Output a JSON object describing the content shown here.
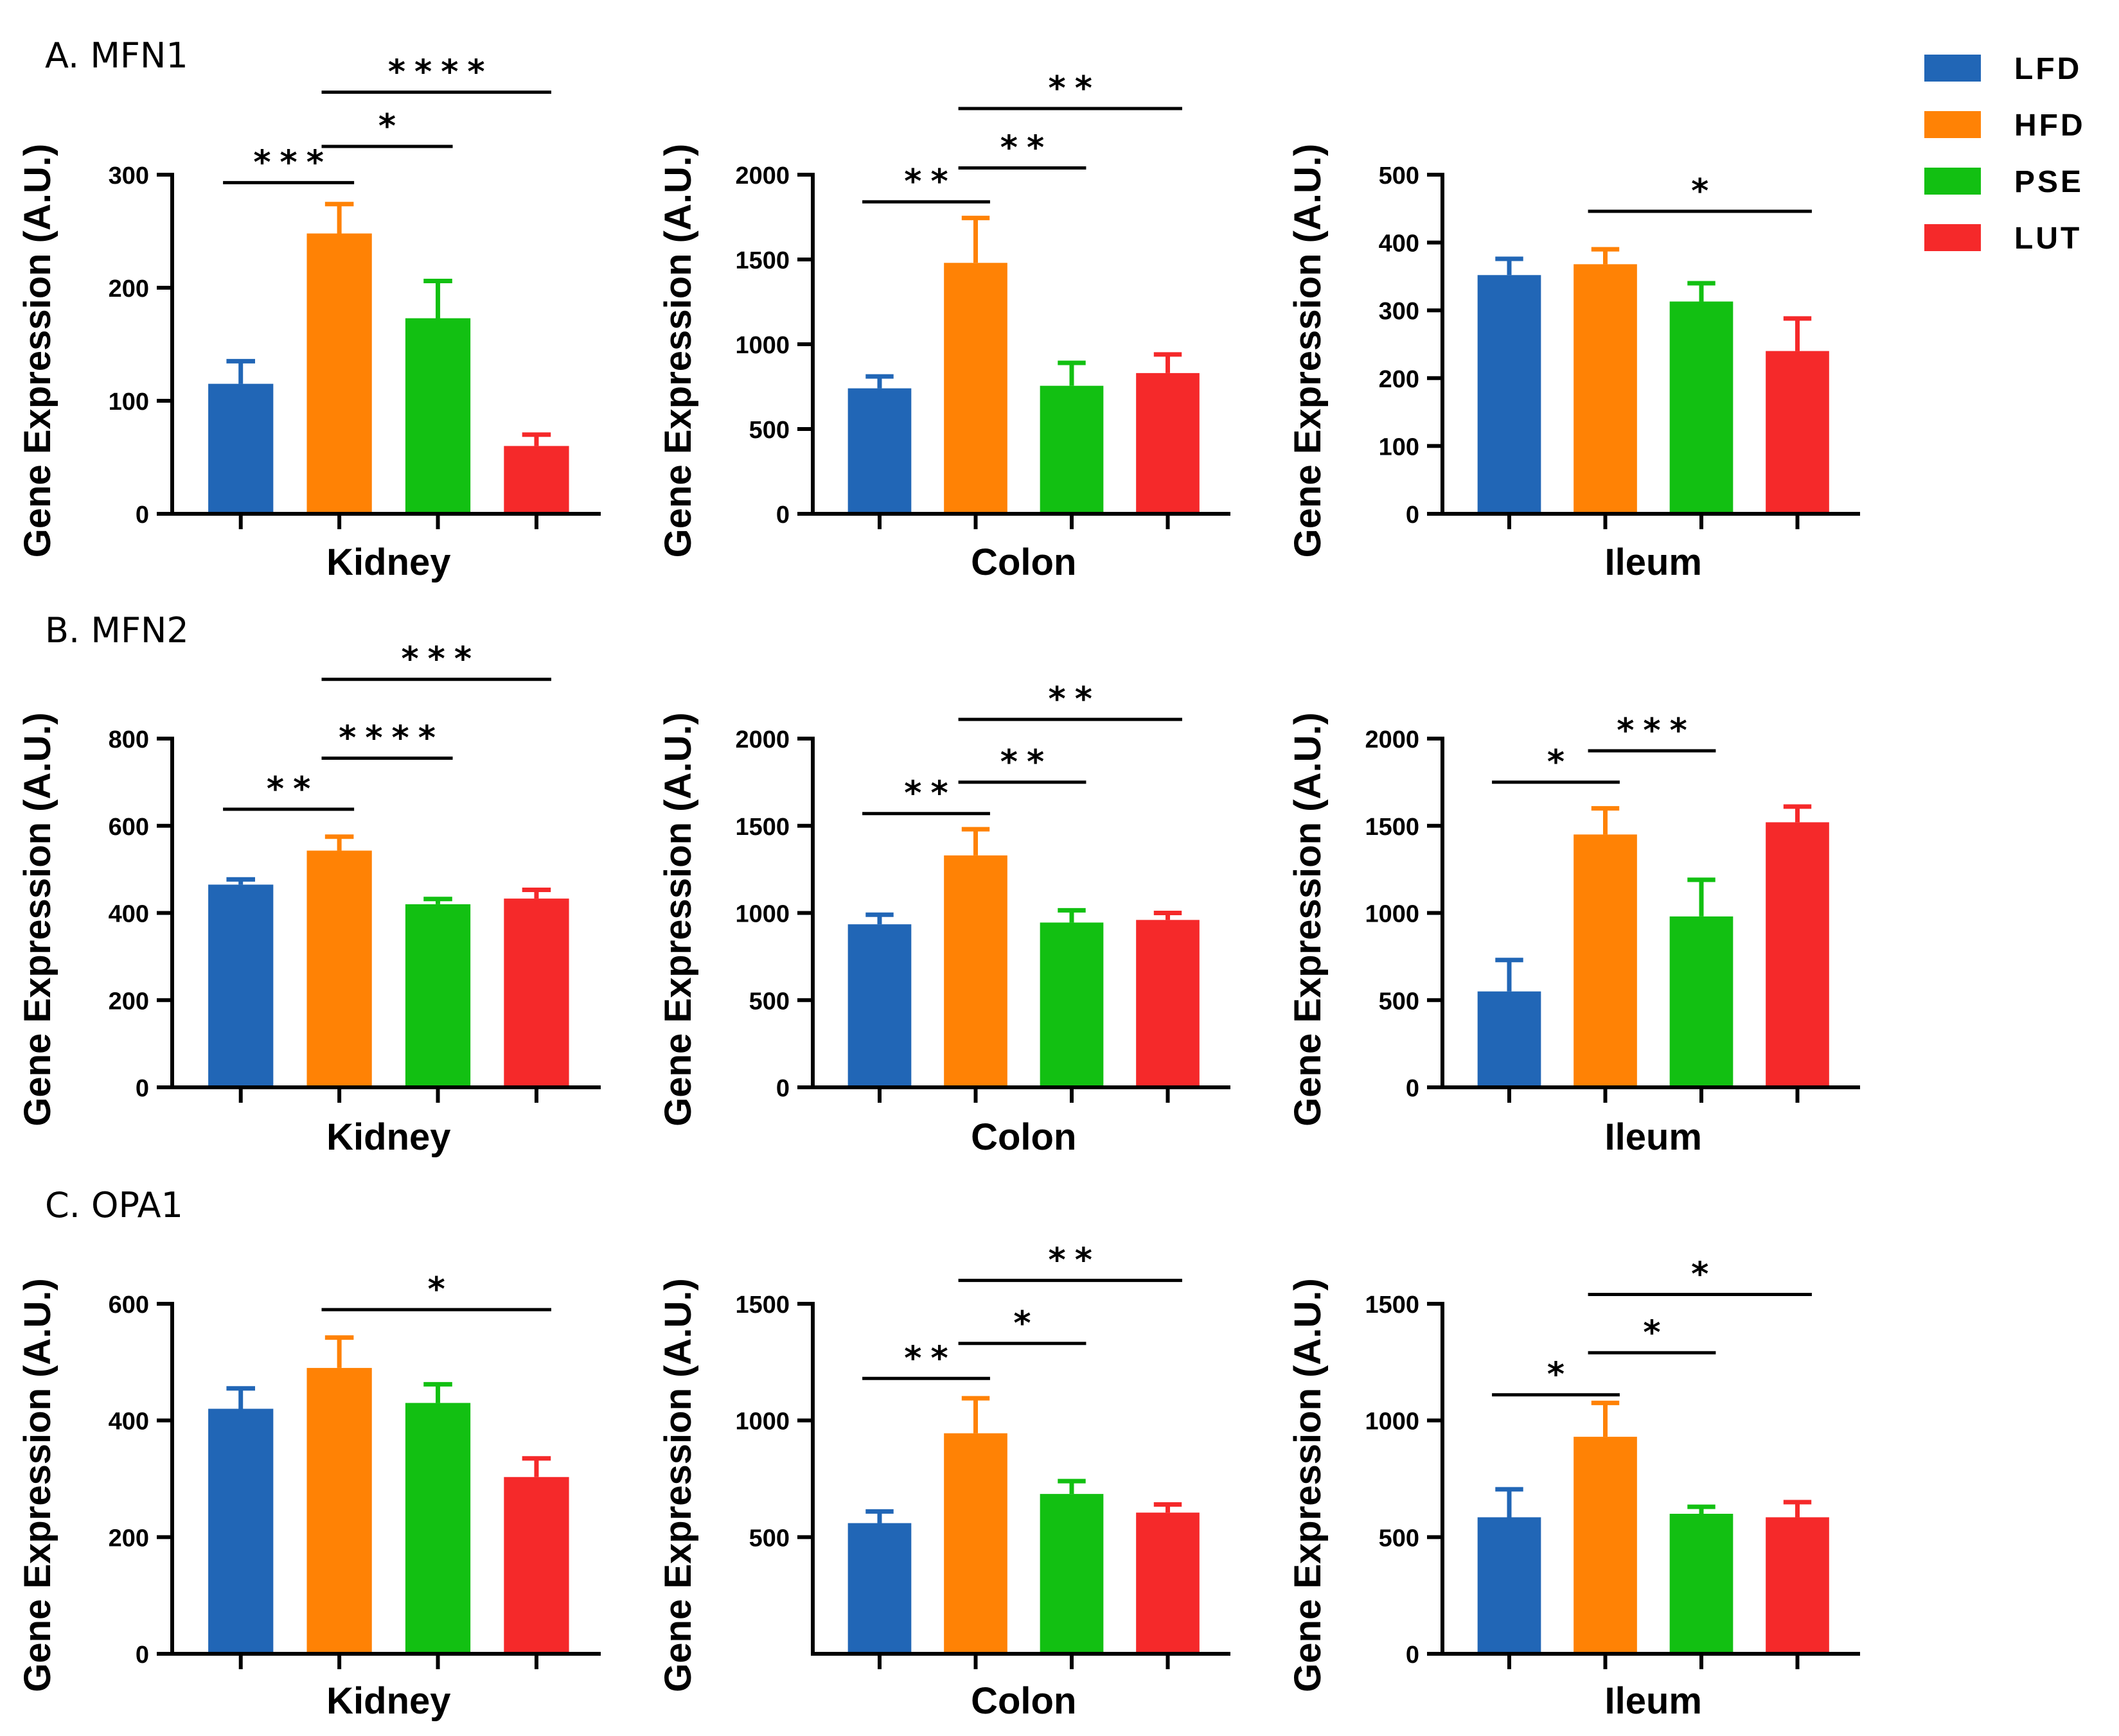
{
  "colors": {
    "LFD": "#2166b6",
    "HFD": "#ff8205",
    "PSE": "#12c012",
    "LUT": "#f5292a"
  },
  "legend": {
    "items": [
      {
        "label": "LFD",
        "key": "LFD"
      },
      {
        "label": "HFD",
        "key": "HFD"
      },
      {
        "label": "PSE",
        "key": "PSE"
      },
      {
        "label": "LUT",
        "key": "LUT"
      }
    ]
  },
  "rows": [
    {
      "title": "A. MFN1"
    },
    {
      "title": "B. MFN2"
    },
    {
      "title": "C. OPA1"
    }
  ],
  "chart_data": [
    {
      "type": "bar",
      "row": 0,
      "col": 0,
      "xlabel": "Kidney",
      "ylabel": "Gene Expression (A.U.)",
      "ylim": [
        0,
        300
      ],
      "yticks": [
        0,
        100,
        200,
        300
      ],
      "categories": [
        "LFD",
        "HFD",
        "PSE",
        "LUT"
      ],
      "values": [
        115,
        248,
        173,
        60
      ],
      "errors": [
        20,
        26,
        33,
        10
      ],
      "significance": [
        {
          "from": 0,
          "to": 1,
          "y": 293,
          "label": "***"
        },
        {
          "from": 1,
          "to": 2,
          "y": 325,
          "label": "*"
        },
        {
          "from": 1,
          "to": 3,
          "y": 373,
          "label": "****"
        }
      ]
    },
    {
      "type": "bar",
      "row": 0,
      "col": 1,
      "xlabel": "Colon",
      "ylabel": "Gene Expression (A.U.)",
      "ylim": [
        0,
        2000
      ],
      "yticks": [
        0,
        500,
        1000,
        1500,
        2000
      ],
      "categories": [
        "LFD",
        "HFD",
        "PSE",
        "LUT"
      ],
      "values": [
        740,
        1480,
        755,
        830
      ],
      "errors": [
        70,
        265,
        135,
        110
      ],
      "significance": [
        {
          "from": 0,
          "to": 1,
          "y": 1840,
          "label": "**"
        },
        {
          "from": 1,
          "to": 2,
          "y": 2040,
          "label": "**"
        },
        {
          "from": 1,
          "to": 3,
          "y": 2390,
          "label": "**"
        }
      ]
    },
    {
      "type": "bar",
      "row": 0,
      "col": 2,
      "xlabel": "Ileum",
      "ylabel": "Gene Expression (A.U.)",
      "ylim": [
        0,
        500
      ],
      "yticks": [
        0,
        100,
        200,
        300,
        400,
        500
      ],
      "categories": [
        "LFD",
        "HFD",
        "PSE",
        "LUT"
      ],
      "values": [
        352,
        368,
        313,
        240
      ],
      "errors": [
        24,
        22,
        27,
        48
      ],
      "significance": [
        {
          "from": 1,
          "to": 3,
          "y": 446,
          "label": "*"
        }
      ]
    },
    {
      "type": "bar",
      "row": 1,
      "col": 0,
      "xlabel": "Kidney",
      "ylabel": "Gene Expression (A.U.)",
      "ylim": [
        0,
        800
      ],
      "yticks": [
        0,
        200,
        400,
        600,
        800
      ],
      "categories": [
        "LFD",
        "HFD",
        "PSE",
        "LUT"
      ],
      "values": [
        465,
        543,
        420,
        433
      ],
      "errors": [
        12,
        32,
        12,
        20
      ],
      "significance": [
        {
          "from": 0,
          "to": 1,
          "y": 638,
          "label": "**"
        },
        {
          "from": 1,
          "to": 2,
          "y": 755,
          "label": "****"
        },
        {
          "from": 1,
          "to": 3,
          "y": 936,
          "label": "***"
        }
      ]
    },
    {
      "type": "bar",
      "row": 1,
      "col": 1,
      "xlabel": "Colon",
      "ylabel": "Gene Expression (A.U.)",
      "ylim": [
        0,
        2000
      ],
      "yticks": [
        0,
        500,
        1000,
        1500,
        2000
      ],
      "categories": [
        "LFD",
        "HFD",
        "PSE",
        "LUT"
      ],
      "values": [
        935,
        1330,
        945,
        960
      ],
      "errors": [
        55,
        150,
        70,
        40
      ],
      "significance": [
        {
          "from": 0,
          "to": 1,
          "y": 1570,
          "label": "**"
        },
        {
          "from": 1,
          "to": 2,
          "y": 1750,
          "label": "**"
        },
        {
          "from": 1,
          "to": 3,
          "y": 2110,
          "label": "**"
        }
      ]
    },
    {
      "type": "bar",
      "row": 1,
      "col": 2,
      "xlabel": "Ileum",
      "ylabel": "Gene Expression (A.U.)",
      "ylim": [
        0,
        2000
      ],
      "yticks": [
        0,
        500,
        1000,
        1500,
        2000
      ],
      "categories": [
        "LFD",
        "HFD",
        "PSE",
        "LUT"
      ],
      "values": [
        550,
        1450,
        980,
        1520
      ],
      "errors": [
        180,
        150,
        210,
        90
      ],
      "significance": [
        {
          "from": 0,
          "to": 1,
          "y": 1750,
          "label": "*"
        },
        {
          "from": 1,
          "to": 2,
          "y": 1930,
          "label": "***"
        }
      ]
    },
    {
      "type": "bar",
      "row": 2,
      "col": 0,
      "xlabel": "Kidney",
      "ylabel": "Gene Expression (A.U.)",
      "ylim": [
        0,
        600
      ],
      "yticks": [
        0,
        200,
        400,
        600
      ],
      "categories": [
        "LFD",
        "HFD",
        "PSE",
        "LUT"
      ],
      "values": [
        420,
        490,
        430,
        303
      ],
      "errors": [
        35,
        52,
        32,
        32
      ],
      "significance": [
        {
          "from": 1,
          "to": 3,
          "y": 590,
          "label": "*"
        }
      ]
    },
    {
      "type": "bar",
      "row": 2,
      "col": 1,
      "xlabel": "Colon",
      "ylabel": "Gene Expression (A.U.)",
      "ylim": [
        0,
        1500
      ],
      "yticks": [
        500,
        1000,
        1500
      ],
      "categories": [
        "LFD",
        "HFD",
        "PSE",
        "LUT"
      ],
      "values": [
        560,
        945,
        685,
        605
      ],
      "errors": [
        50,
        150,
        55,
        35
      ],
      "significance": [
        {
          "from": 0,
          "to": 1,
          "y": 1180,
          "label": "**"
        },
        {
          "from": 1,
          "to": 2,
          "y": 1330,
          "label": "*"
        },
        {
          "from": 1,
          "to": 3,
          "y": 1600,
          "label": "**"
        }
      ]
    },
    {
      "type": "bar",
      "row": 2,
      "col": 2,
      "xlabel": "Ileum",
      "ylabel": "Gene Expression (A.U.)",
      "ylim": [
        0,
        1500
      ],
      "yticks": [
        0,
        500,
        1000,
        1500
      ],
      "categories": [
        "LFD",
        "HFD",
        "PSE",
        "LUT"
      ],
      "values": [
        585,
        930,
        600,
        585
      ],
      "errors": [
        120,
        145,
        30,
        65
      ],
      "significance": [
        {
          "from": 0,
          "to": 1,
          "y": 1110,
          "label": "*"
        },
        {
          "from": 1,
          "to": 2,
          "y": 1290,
          "label": "*"
        },
        {
          "from": 1,
          "to": 3,
          "y": 1540,
          "label": "*"
        }
      ]
    }
  ]
}
